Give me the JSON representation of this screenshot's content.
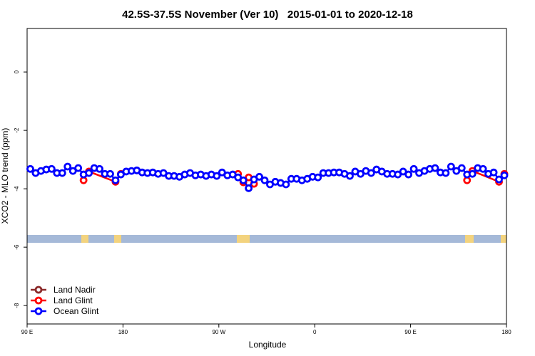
{
  "chart_data": {
    "type": "line",
    "title": "42.5S-37.5S November (Ver 10)   2015-01-01 to 2020-12-18",
    "xlabel": "Longitude",
    "ylabel": "XCO2 - MLO trend (ppm)",
    "xlim": [
      90,
      540
    ],
    "xticks": [
      {
        "value": 90,
        "label": "90 E"
      },
      {
        "value": 180,
        "label": "180"
      },
      {
        "value": 270,
        "label": "90 W"
      },
      {
        "value": 360,
        "label": "0"
      },
      {
        "value": 450,
        "label": "90 E"
      },
      {
        "value": 540,
        "label": "180"
      }
    ],
    "ylim": [
      -8.63,
      1.49
    ],
    "yticks": [
      0,
      -2,
      -4,
      -6,
      -8
    ],
    "legend": "bottom-left",
    "series": [
      {
        "name": "Land Nadir",
        "color": "#8b2a2a",
        "x": [],
        "values": []
      },
      {
        "name": "Land Glint",
        "color": "#ff0000",
        "x": [
          143,
          148,
          173,
          178,
          null,
          288,
          293,
          298,
          303,
          null,
          503,
          508,
          533,
          538
        ],
        "values": [
          -3.71,
          -3.41,
          -3.76,
          -3.49,
          null,
          -3.49,
          -3.78,
          -3.61,
          -3.83,
          null,
          -3.71,
          -3.39,
          -3.76,
          -3.49
        ]
      },
      {
        "name": "Ocean Glint",
        "color": "#0000ff",
        "x": [
          93,
          98,
          103,
          108,
          113,
          118,
          123,
          128,
          133,
          138,
          143,
          148,
          153,
          158,
          163,
          168,
          173,
          178,
          183,
          188,
          193,
          198,
          203,
          208,
          213,
          218,
          223,
          228,
          233,
          238,
          243,
          248,
          253,
          258,
          263,
          268,
          273,
          278,
          283,
          288,
          293,
          298,
          303,
          308,
          313,
          318,
          323,
          328,
          333,
          338,
          343,
          348,
          353,
          358,
          363,
          368,
          373,
          378,
          383,
          388,
          393,
          398,
          403,
          408,
          413,
          418,
          423,
          428,
          433,
          438,
          443,
          448,
          453,
          458,
          463,
          468,
          473,
          478,
          483,
          488,
          493,
          498,
          503,
          508,
          513,
          518,
          523,
          528,
          533,
          538
        ],
        "values": [
          -3.32,
          -3.46,
          -3.39,
          -3.34,
          -3.32,
          -3.46,
          -3.46,
          -3.24,
          -3.39,
          -3.29,
          -3.51,
          -3.46,
          -3.29,
          -3.32,
          -3.49,
          -3.49,
          -3.71,
          -3.51,
          -3.41,
          -3.39,
          -3.37,
          -3.44,
          -3.46,
          -3.44,
          -3.49,
          -3.46,
          -3.56,
          -3.56,
          -3.59,
          -3.51,
          -3.46,
          -3.54,
          -3.51,
          -3.56,
          -3.51,
          -3.56,
          -3.44,
          -3.54,
          -3.51,
          -3.61,
          -3.71,
          -3.98,
          -3.68,
          -3.59,
          -3.71,
          -3.85,
          -3.76,
          -3.8,
          -3.85,
          -3.66,
          -3.66,
          -3.71,
          -3.66,
          -3.59,
          -3.61,
          -3.46,
          -3.46,
          -3.44,
          -3.44,
          -3.49,
          -3.56,
          -3.41,
          -3.49,
          -3.39,
          -3.46,
          -3.34,
          -3.41,
          -3.49,
          -3.49,
          -3.51,
          -3.41,
          -3.51,
          -3.32,
          -3.46,
          -3.39,
          -3.32,
          -3.29,
          -3.44,
          -3.46,
          -3.24,
          -3.39,
          -3.29,
          -3.51,
          -3.49,
          -3.29,
          -3.32,
          -3.49,
          -3.44,
          -3.68,
          -3.54
        ]
      }
    ]
  }
}
